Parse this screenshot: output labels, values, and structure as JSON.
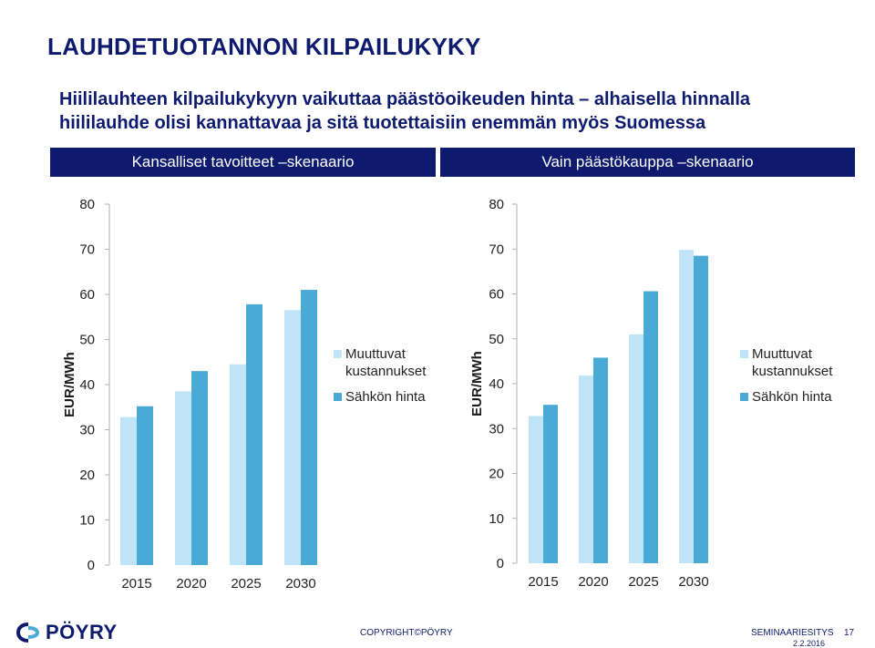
{
  "page": {
    "title": "LAUHDETUOTANNON KILPAILUKYKY",
    "subtitle": "Hiililauhteen kilpailukykyyn vaikuttaa päästöoikeuden hinta – alhaisella hinnalla hiililauhde olisi kannattavaa ja sitä tuotettaisiin enemmän myös Suomessa",
    "footer": {
      "logo": "PÖYRY",
      "copyright": "COPYRIGHT©PÖYRY",
      "seminar": "SEMINAARIESITYS",
      "page_number": "17",
      "date": "2.2.2016"
    }
  },
  "colors": {
    "navy": "#0d1a6e",
    "series_light": "#bfe4f7",
    "series_dark": "#4aaad6",
    "axis": "#b0b0b0"
  },
  "chart_data": [
    {
      "type": "bar",
      "title": "Kansalliset tavoitteet –skenaario",
      "ylabel": "EUR/MWh",
      "categories": [
        "2015",
        "2020",
        "2025",
        "2030"
      ],
      "ylim": [
        0,
        80
      ],
      "yticks": [
        0,
        10,
        20,
        30,
        40,
        50,
        60,
        70,
        80
      ],
      "legend_position": "right",
      "series": [
        {
          "name": "Muuttuvat kustannukset",
          "values": [
            32.8,
            38.5,
            44.5,
            56.5
          ]
        },
        {
          "name": "Sähkön hinta",
          "values": [
            35.2,
            43.0,
            57.8,
            61.0
          ]
        }
      ]
    },
    {
      "type": "bar",
      "title": "Vain päästökauppa –skenaario",
      "ylabel": "EUR/MWh",
      "categories": [
        "2015",
        "2020",
        "2025",
        "2030"
      ],
      "ylim": [
        0,
        80
      ],
      "yticks": [
        0,
        10,
        20,
        30,
        40,
        50,
        60,
        70,
        80
      ],
      "legend_position": "right",
      "series": [
        {
          "name": "Muuttuvat kustannukset",
          "values": [
            32.8,
            41.8,
            51.0,
            69.8
          ]
        },
        {
          "name": "Sähkön hinta",
          "values": [
            35.3,
            45.8,
            60.6,
            68.5
          ]
        }
      ]
    }
  ]
}
